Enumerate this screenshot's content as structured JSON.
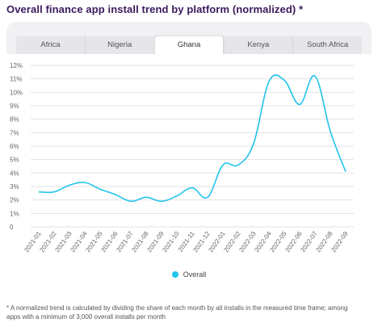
{
  "title": "Overall finance app install trend by platform (normalized) *",
  "tabs": [
    {
      "label": "Africa",
      "active": false
    },
    {
      "label": "Nigeria",
      "active": false
    },
    {
      "label": "Ghana",
      "active": true
    },
    {
      "label": "Kenya",
      "active": false
    },
    {
      "label": "South Africa",
      "active": false
    }
  ],
  "colors": {
    "line": "#22c4ea",
    "title": "#3a1a5c",
    "grid": "#e2e2e6"
  },
  "footnote": "* A normalized trend is calculated by dividing the share of each month by all installs in the measured time frame; among apps with a minimum of 3,000 overall installs per month",
  "chart_data": {
    "type": "line",
    "categories": [
      "2021-01",
      "2021-02",
      "2021-03",
      "2021-04",
      "2021-05",
      "2021-06",
      "2021-07",
      "2021-08",
      "2021-09",
      "2021-10",
      "2021-11",
      "2021-12",
      "2022-01",
      "2022-02",
      "2022-03",
      "2022-04",
      "2022-05",
      "2022-06",
      "2022-07",
      "2022-08",
      "2022-09"
    ],
    "series": [
      {
        "name": "Overall",
        "values": [
          2.6,
          2.6,
          3.1,
          3.3,
          2.8,
          2.4,
          1.9,
          2.2,
          1.9,
          2.3,
          2.9,
          2.2,
          4.6,
          4.6,
          6.2,
          10.8,
          10.9,
          9.1,
          11.2,
          7.1,
          4.1
        ]
      }
    ],
    "yticks": [
      "0",
      "1%",
      "2%",
      "3%",
      "4%",
      "5%",
      "6%",
      "7%",
      "8%",
      "9%",
      "10%",
      "11%",
      "12%"
    ],
    "ylim": [
      0,
      12
    ],
    "grid": true,
    "legend": "bottom"
  }
}
